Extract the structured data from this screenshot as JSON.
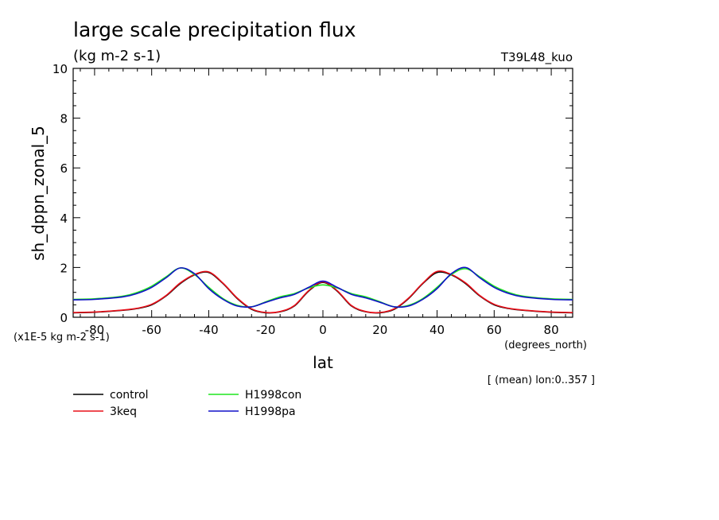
{
  "chart_data": {
    "type": "line",
    "title": "large scale precipitation flux",
    "subtitle": "(kg m-2 s-1)",
    "run_label": "T39L48_kuo",
    "ylabel": "sh_dppn_zonal_5",
    "xlabel": "lat",
    "xunits": "(degrees_north)",
    "yscale_note": "(x1E-5 kg m-2 s-1)",
    "mean_note": "[ (mean) lon:0..357 ]",
    "xlim": [
      -87.5,
      87.5
    ],
    "ylim": [
      0,
      10
    ],
    "xticks": [
      -80,
      -60,
      -40,
      -20,
      0,
      20,
      40,
      60,
      80
    ],
    "xtick_labels": [
      "-80",
      "-60",
      "-40",
      "-20",
      "0",
      "20",
      "40",
      "60",
      "80"
    ],
    "yticks": [
      0,
      2,
      4,
      6,
      8,
      10
    ],
    "ytick_labels": [
      "0",
      "2",
      "4",
      "6",
      "8",
      "10"
    ],
    "grid": false,
    "legend_position": "bottom-left",
    "x": [
      -87.5,
      -80,
      -70,
      -65,
      -60,
      -55,
      -50,
      -45,
      -40,
      -35,
      -30,
      -25,
      -20,
      -15,
      -10,
      -5,
      0,
      5,
      10,
      15,
      20,
      25,
      30,
      35,
      40,
      45,
      50,
      55,
      60,
      65,
      70,
      80,
      87.5
    ],
    "series": [
      {
        "name": "control",
        "color": "#000000",
        "values": [
          0.18,
          0.2,
          0.28,
          0.35,
          0.5,
          0.85,
          1.35,
          1.7,
          1.8,
          1.35,
          0.75,
          0.32,
          0.18,
          0.22,
          0.45,
          1.05,
          1.4,
          1.05,
          0.45,
          0.22,
          0.18,
          0.32,
          0.75,
          1.35,
          1.8,
          1.7,
          1.35,
          0.85,
          0.5,
          0.35,
          0.28,
          0.2,
          0.18
        ]
      },
      {
        "name": "3keq",
        "color": "#e8101a",
        "values": [
          0.19,
          0.21,
          0.29,
          0.36,
          0.52,
          0.87,
          1.38,
          1.72,
          1.82,
          1.37,
          0.77,
          0.34,
          0.19,
          0.23,
          0.47,
          1.07,
          1.42,
          1.07,
          0.47,
          0.23,
          0.19,
          0.34,
          0.77,
          1.37,
          1.84,
          1.72,
          1.38,
          0.87,
          0.52,
          0.36,
          0.29,
          0.21,
          0.19
        ]
      },
      {
        "name": "H1998con",
        "color": "#1ee61e",
        "values": [
          0.72,
          0.74,
          0.85,
          1.0,
          1.25,
          1.62,
          1.98,
          1.72,
          1.2,
          0.75,
          0.48,
          0.42,
          0.62,
          0.82,
          0.95,
          1.18,
          1.3,
          1.18,
          0.95,
          0.82,
          0.62,
          0.42,
          0.48,
          0.75,
          1.2,
          1.72,
          1.95,
          1.62,
          1.25,
          1.0,
          0.85,
          0.74,
          0.72
        ]
      },
      {
        "name": "H1998pa",
        "color": "#1010c8",
        "values": [
          0.7,
          0.72,
          0.82,
          0.96,
          1.2,
          1.58,
          1.98,
          1.75,
          1.15,
          0.72,
          0.45,
          0.42,
          0.6,
          0.78,
          0.92,
          1.2,
          1.45,
          1.2,
          0.92,
          0.78,
          0.6,
          0.42,
          0.45,
          0.72,
          1.15,
          1.75,
          2.0,
          1.58,
          1.2,
          0.96,
          0.82,
          0.72,
          0.7
        ]
      }
    ]
  }
}
